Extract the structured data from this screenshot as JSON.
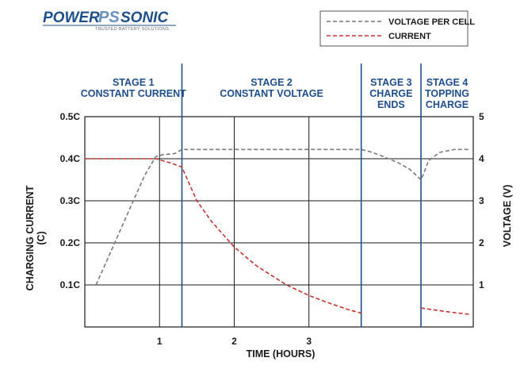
{
  "brand": {
    "name_left": "POWER",
    "name_mark": "PS",
    "name_right": "SONIC",
    "tagline": "TRUSTED BATTERY SOLUTIONS"
  },
  "colors": {
    "voltage": "#7a7a7a",
    "current": "#c8322d",
    "stage_divider": "#1f4e8c",
    "stage_text": "#1f4e8c",
    "grid": "#1a1a1a"
  },
  "chart_data": {
    "type": "line",
    "xlabel": "TIME (HOURS)",
    "ylabel_left_line1": "CHARGING CURRENT",
    "ylabel_left_line2": "(C)",
    "ylabel_right": "VOLTAGE (V)",
    "x_ticks": [
      "1",
      "2",
      "3"
    ],
    "x_tick_values": [
      1,
      2,
      3
    ],
    "xlim": [
      0,
      5.2
    ],
    "left_ticks": [
      "0.1C",
      "0.2C",
      "0.3C",
      "0.4C",
      "0.5C"
    ],
    "left_tick_values": [
      0.1,
      0.2,
      0.3,
      0.4,
      0.5
    ],
    "ylim_left": [
      0,
      0.5
    ],
    "right_ticks": [
      "1",
      "2",
      "3",
      "4",
      "5"
    ],
    "right_tick_values": [
      1,
      2,
      3,
      4,
      5
    ],
    "ylim_right": [
      0,
      5
    ],
    "grid": true,
    "legend_position": "top-right",
    "stage_boundaries": [
      1.3,
      3.7,
      4.5
    ],
    "stages": [
      {
        "line1": "STAGE 1",
        "line2": "CONSTANT CURRENT",
        "line3": ""
      },
      {
        "line1": "STAGE 2",
        "line2": "CONSTANT VOLTAGE",
        "line3": ""
      },
      {
        "line1": "STAGE 3",
        "line2": "CHARGE",
        "line3": "ENDS"
      },
      {
        "line1": "STAGE 4",
        "line2": "TOPPING",
        "line3": "CHARGE"
      }
    ],
    "series": [
      {
        "name": "VOLTAGE PER CELL",
        "axis": "right",
        "style": "dashed",
        "segments": [
          [
            [
              0.15,
              1.0
            ],
            [
              0.35,
              1.8
            ],
            [
              0.6,
              2.8
            ],
            [
              0.8,
              3.6
            ],
            [
              0.95,
              4.05
            ],
            [
              1.05,
              4.1
            ],
            [
              1.2,
              4.12
            ],
            [
              1.3,
              4.22
            ],
            [
              2.0,
              4.22
            ],
            [
              3.0,
              4.22
            ],
            [
              3.7,
              4.22
            ],
            [
              3.85,
              4.15
            ],
            [
              4.0,
              4.05
            ],
            [
              4.2,
              3.9
            ],
            [
              4.35,
              3.75
            ],
            [
              4.5,
              3.5
            ],
            [
              4.53,
              3.62
            ],
            [
              4.6,
              3.95
            ],
            [
              4.75,
              4.15
            ],
            [
              4.95,
              4.22
            ],
            [
              5.15,
              4.22
            ]
          ]
        ]
      },
      {
        "name": "CURRENT",
        "axis": "left",
        "style": "dashed",
        "segments": [
          [
            [
              0.0,
              0.4
            ],
            [
              0.95,
              0.4
            ],
            [
              1.15,
              0.39
            ],
            [
              1.3,
              0.38
            ],
            [
              1.5,
              0.3
            ],
            [
              1.7,
              0.25
            ],
            [
              2.0,
              0.19
            ],
            [
              2.3,
              0.145
            ],
            [
              2.7,
              0.1
            ],
            [
              3.0,
              0.075
            ],
            [
              3.3,
              0.055
            ],
            [
              3.55,
              0.04
            ],
            [
              3.7,
              0.033
            ]
          ],
          [
            [
              4.5,
              0.045
            ],
            [
              4.7,
              0.04
            ],
            [
              4.9,
              0.035
            ],
            [
              5.15,
              0.03
            ]
          ]
        ]
      }
    ]
  }
}
